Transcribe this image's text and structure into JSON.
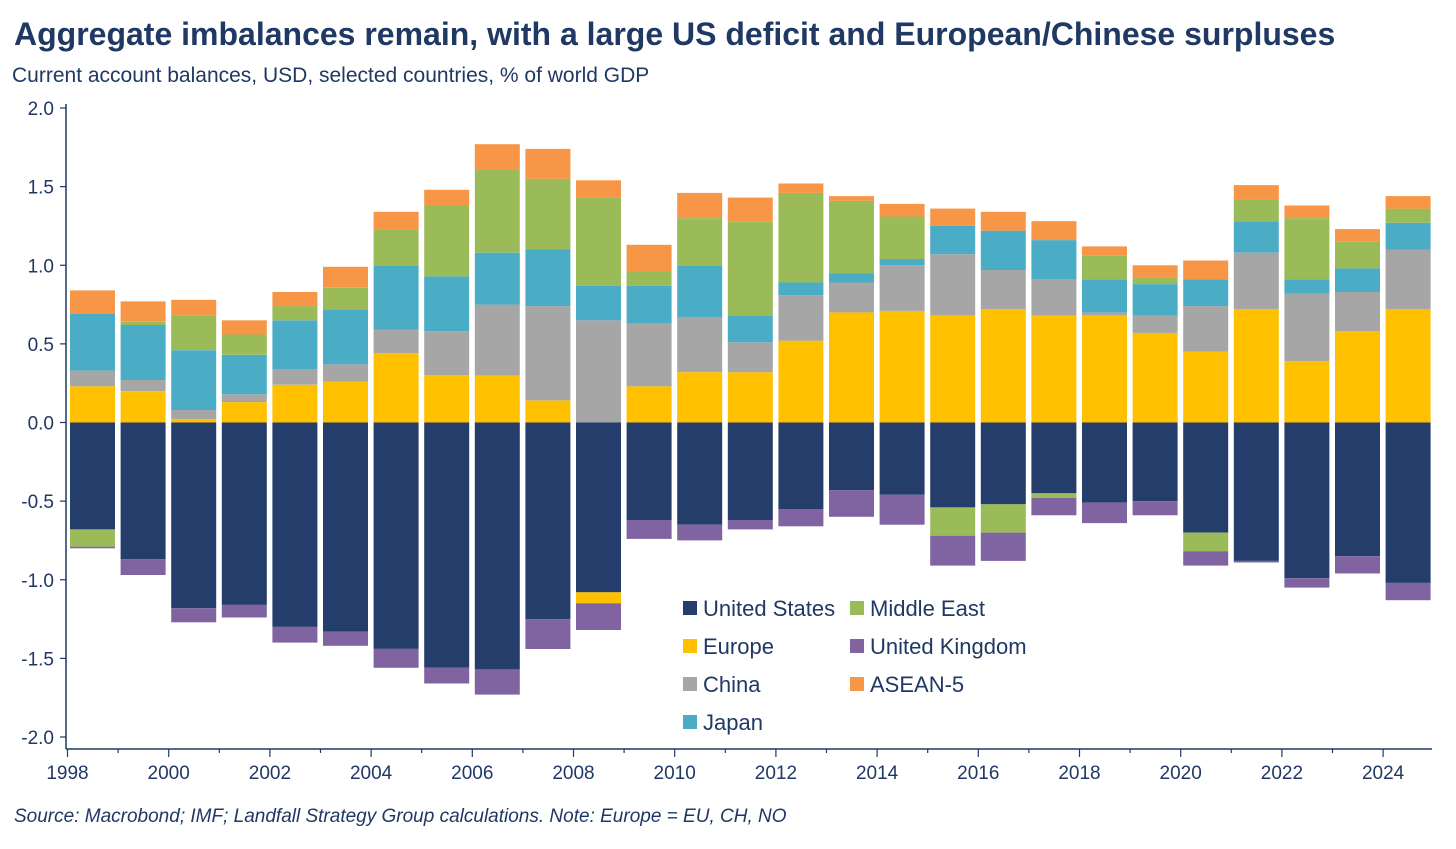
{
  "title": "Aggregate imbalances remain, with a large US deficit and European/Chinese surpluses",
  "subtitle": "Current account balances, USD, selected countries, % of world GDP",
  "source": "Source: Macrobond; IMF; Landfall Strategy Group calculations. Note: Europe = EU, CH, NO",
  "chart_data": {
    "type": "bar",
    "stacked": true,
    "ylim": [
      -2.0,
      2.0
    ],
    "yticks": [
      2.0,
      1.5,
      1.0,
      0.5,
      0.0,
      -0.5,
      -1.0,
      -1.5,
      -2.0
    ],
    "ytick_labels": [
      "2.0",
      "1.5",
      "1.0",
      "0.5",
      "0.0",
      "-0.5",
      "-1.0",
      "-1.5",
      "-2.0"
    ],
    "x": [
      1998,
      1999,
      2000,
      2001,
      2002,
      2003,
      2004,
      2005,
      2006,
      2007,
      2008,
      2009,
      2010,
      2011,
      2012,
      2013,
      2014,
      2015,
      2016,
      2017,
      2018,
      2019,
      2020,
      2021,
      2022,
      2023,
      2024
    ],
    "xtick_labels": [
      "1998",
      "2000",
      "2002",
      "2004",
      "2006",
      "2008",
      "2010",
      "2012",
      "2014",
      "2016",
      "2018",
      "2020",
      "2022",
      "2024"
    ],
    "legend_position": "bottom-center",
    "series": [
      {
        "name": "United States",
        "color": "#253d6b",
        "values": [
          -0.68,
          -0.87,
          -1.18,
          -1.16,
          -1.3,
          -1.33,
          -1.44,
          -1.56,
          -1.57,
          -1.25,
          -1.08,
          -0.62,
          -0.65,
          -0.62,
          -0.55,
          -0.43,
          -0.46,
          -0.54,
          -0.52,
          -0.45,
          -0.51,
          -0.5,
          -0.7,
          -0.88,
          -0.99,
          -0.85,
          -1.02
        ]
      },
      {
        "name": "Europe",
        "color": "#ffc000",
        "values": [
          0.23,
          0.2,
          0.02,
          0.13,
          0.24,
          0.26,
          0.44,
          0.3,
          0.3,
          0.14,
          -0.07,
          0.23,
          0.32,
          0.32,
          0.52,
          0.7,
          0.71,
          0.68,
          0.72,
          0.68,
          0.68,
          0.57,
          0.45,
          0.72,
          0.39,
          0.58,
          0.72
        ]
      },
      {
        "name": "China",
        "color": "#a6a6a6",
        "values": [
          0.1,
          0.07,
          0.06,
          0.05,
          0.1,
          0.11,
          0.15,
          0.28,
          0.45,
          0.6,
          0.65,
          0.4,
          0.35,
          0.19,
          0.29,
          0.19,
          0.29,
          0.39,
          0.25,
          0.23,
          0.02,
          0.11,
          0.29,
          0.36,
          0.43,
          0.25,
          0.38
        ]
      },
      {
        "name": "Japan",
        "color": "#4bacc6",
        "values": [
          0.36,
          0.35,
          0.38,
          0.25,
          0.31,
          0.35,
          0.41,
          0.35,
          0.33,
          0.36,
          0.22,
          0.24,
          0.33,
          0.17,
          0.08,
          0.06,
          0.04,
          0.18,
          0.25,
          0.25,
          0.21,
          0.2,
          0.17,
          0.2,
          0.09,
          0.15,
          0.17
        ]
      },
      {
        "name": "Middle East",
        "color": "#9bbb59",
        "values": [
          -0.11,
          0.02,
          0.22,
          0.13,
          0.09,
          0.14,
          0.23,
          0.45,
          0.53,
          0.45,
          0.56,
          0.09,
          0.3,
          0.6,
          0.57,
          0.46,
          0.27,
          -0.18,
          -0.18,
          -0.03,
          0.15,
          0.04,
          -0.12,
          0.14,
          0.39,
          0.17,
          0.09
        ]
      },
      {
        "name": "United Kingdom",
        "color": "#8064a2",
        "values": [
          -0.01,
          -0.1,
          -0.09,
          -0.08,
          -0.1,
          -0.09,
          -0.12,
          -0.1,
          -0.16,
          -0.19,
          -0.17,
          -0.12,
          -0.1,
          -0.06,
          -0.11,
          -0.17,
          -0.19,
          -0.19,
          -0.18,
          -0.11,
          -0.13,
          -0.09,
          -0.09,
          -0.01,
          -0.06,
          -0.11,
          -0.11
        ]
      },
      {
        "name": "ASEAN-5",
        "color": "#f79646",
        "values": [
          0.15,
          0.13,
          0.1,
          0.09,
          0.09,
          0.13,
          0.11,
          0.1,
          0.16,
          0.19,
          0.11,
          0.17,
          0.16,
          0.15,
          0.06,
          0.03,
          0.08,
          0.11,
          0.12,
          0.12,
          0.06,
          0.08,
          0.12,
          0.09,
          0.08,
          0.08,
          0.08
        ]
      }
    ]
  }
}
